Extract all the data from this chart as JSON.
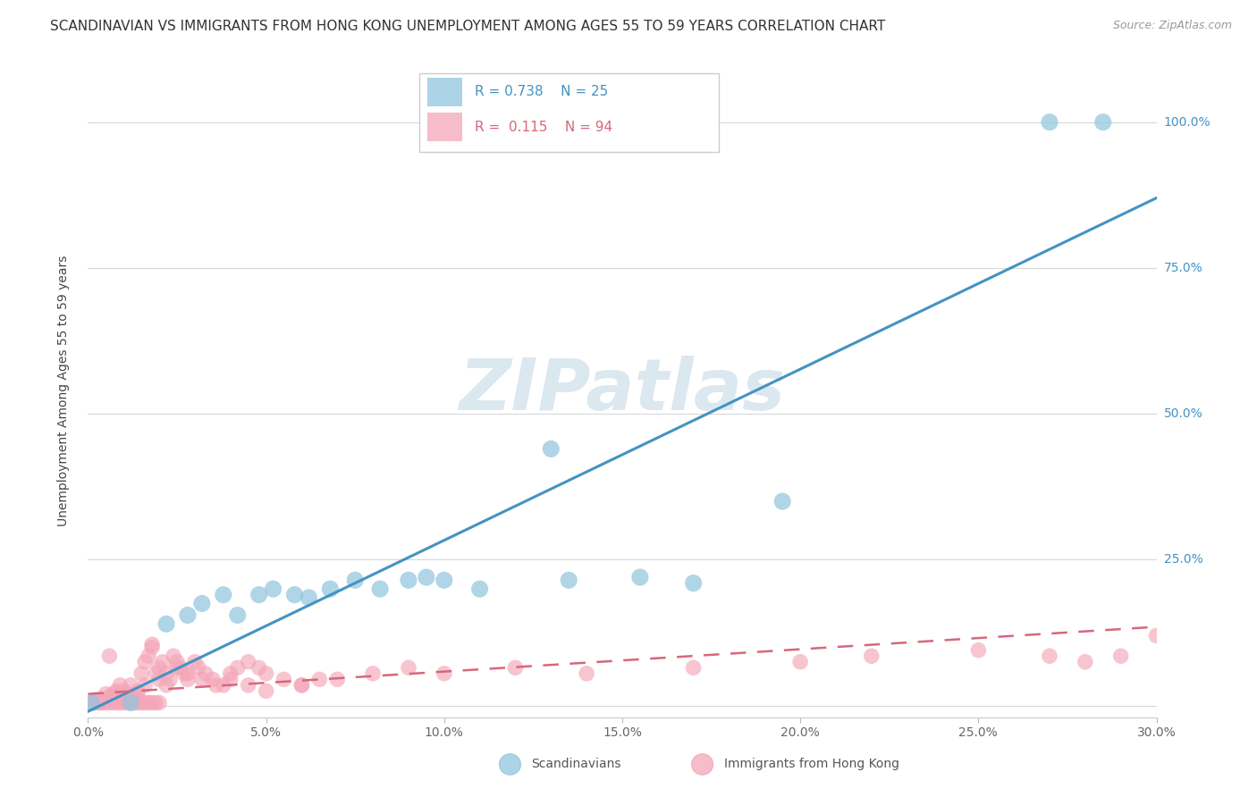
{
  "title": "SCANDINAVIAN VS IMMIGRANTS FROM HONG KONG UNEMPLOYMENT AMONG AGES 55 TO 59 YEARS CORRELATION CHART",
  "source": "Source: ZipAtlas.com",
  "ylabel": "Unemployment Among Ages 55 to 59 years",
  "legend_blue_label": "Scandinavians",
  "legend_pink_label": "Immigrants from Hong Kong",
  "blue_color": "#92c5de",
  "pink_color": "#f4a6b8",
  "blue_line_color": "#4393c3",
  "pink_line_color": "#d6687a",
  "background_color": "#ffffff",
  "watermark_color": "#dce8f0",
  "blue_scatter_x": [
    0.001,
    0.012,
    0.022,
    0.028,
    0.032,
    0.038,
    0.042,
    0.048,
    0.052,
    0.058,
    0.062,
    0.068,
    0.075,
    0.082,
    0.09,
    0.095,
    0.1,
    0.11,
    0.13,
    0.135,
    0.155,
    0.17,
    0.195,
    0.27,
    0.285
  ],
  "blue_scatter_y": [
    0.005,
    0.005,
    0.14,
    0.155,
    0.175,
    0.19,
    0.155,
    0.19,
    0.2,
    0.19,
    0.185,
    0.2,
    0.215,
    0.2,
    0.215,
    0.22,
    0.215,
    0.2,
    0.44,
    0.215,
    0.22,
    0.21,
    0.35,
    1.0,
    1.0
  ],
  "pink_scatter_x": [
    0.001,
    0.002,
    0.002,
    0.003,
    0.003,
    0.004,
    0.004,
    0.005,
    0.005,
    0.006,
    0.006,
    0.007,
    0.007,
    0.008,
    0.008,
    0.009,
    0.009,
    0.01,
    0.01,
    0.011,
    0.011,
    0.012,
    0.012,
    0.013,
    0.013,
    0.014,
    0.014,
    0.015,
    0.015,
    0.016,
    0.016,
    0.017,
    0.017,
    0.018,
    0.018,
    0.019,
    0.019,
    0.02,
    0.02,
    0.021,
    0.022,
    0.023,
    0.024,
    0.025,
    0.026,
    0.027,
    0.028,
    0.03,
    0.031,
    0.033,
    0.035,
    0.038,
    0.04,
    0.042,
    0.045,
    0.048,
    0.05,
    0.055,
    0.06,
    0.065,
    0.007,
    0.008,
    0.009,
    0.01,
    0.012,
    0.014,
    0.016,
    0.018,
    0.02,
    0.022,
    0.025,
    0.028,
    0.032,
    0.036,
    0.04,
    0.045,
    0.05,
    0.06,
    0.07,
    0.08,
    0.09,
    0.1,
    0.12,
    0.14,
    0.17,
    0.2,
    0.22,
    0.25,
    0.27,
    0.28,
    0.29,
    0.3,
    0.003,
    0.006
  ],
  "pink_scatter_y": [
    0.005,
    0.01,
    0.005,
    0.01,
    0.005,
    0.01,
    0.005,
    0.02,
    0.005,
    0.015,
    0.005,
    0.02,
    0.005,
    0.015,
    0.005,
    0.02,
    0.005,
    0.015,
    0.005,
    0.02,
    0.005,
    0.015,
    0.005,
    0.02,
    0.005,
    0.015,
    0.005,
    0.055,
    0.005,
    0.075,
    0.005,
    0.085,
    0.005,
    0.1,
    0.005,
    0.055,
    0.005,
    0.065,
    0.005,
    0.075,
    0.035,
    0.045,
    0.085,
    0.075,
    0.065,
    0.055,
    0.045,
    0.075,
    0.065,
    0.055,
    0.045,
    0.035,
    0.055,
    0.065,
    0.075,
    0.065,
    0.055,
    0.045,
    0.035,
    0.045,
    0.015,
    0.025,
    0.035,
    0.025,
    0.035,
    0.025,
    0.035,
    0.105,
    0.045,
    0.055,
    0.065,
    0.055,
    0.045,
    0.035,
    0.045,
    0.035,
    0.025,
    0.035,
    0.045,
    0.055,
    0.065,
    0.055,
    0.065,
    0.055,
    0.065,
    0.075,
    0.085,
    0.095,
    0.085,
    0.075,
    0.085,
    0.12,
    0.005,
    0.085
  ],
  "blue_line_x0": 0.0,
  "blue_line_x1": 0.3,
  "blue_line_y0": -0.01,
  "blue_line_y1": 0.87,
  "pink_line_x0": 0.0,
  "pink_line_x1": 0.3,
  "pink_line_y0": 0.02,
  "pink_line_y1": 0.135,
  "xmin": 0.0,
  "xmax": 0.3,
  "ymin": -0.02,
  "ymax": 1.1,
  "yticks": [
    0.0,
    0.25,
    0.5,
    0.75,
    1.0
  ],
  "ytick_labels": [
    "",
    "25.0%",
    "50.0%",
    "75.0%",
    "100.0%"
  ],
  "xticks": [
    0.0,
    0.05,
    0.1,
    0.15,
    0.2,
    0.25,
    0.3
  ],
  "xtick_labels": [
    "0.0%",
    "5.0%",
    "10.0%",
    "15.0%",
    "20.0%",
    "25.0%",
    "30.0%"
  ],
  "title_fontsize": 11,
  "source_fontsize": 9,
  "axis_label_fontsize": 10,
  "tick_fontsize": 10,
  "legend_r_blue": "R = 0.738",
  "legend_n_blue": "N = 25",
  "legend_r_pink": "R =  0.115",
  "legend_n_pink": "N = 94"
}
